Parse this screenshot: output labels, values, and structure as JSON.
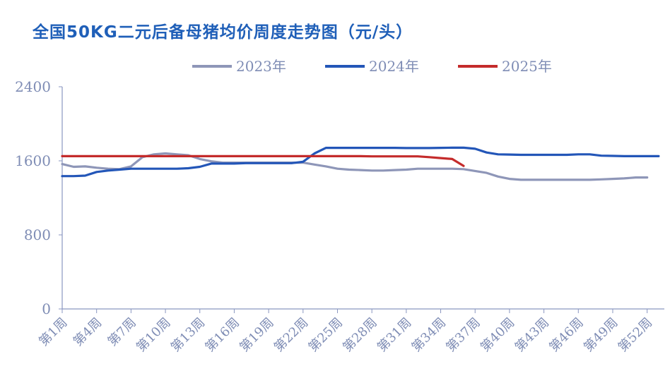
{
  "chart_data": {
    "type": "line",
    "title": "全国50KG二元后备母猪均价周度走势图（元/头）",
    "ylim": [
      0,
      2400
    ],
    "yticks": [
      0,
      800,
      1600,
      2400
    ],
    "xticks": [
      "第1周",
      "第4周",
      "第7周",
      "第10周",
      "第13周",
      "第16周",
      "第19周",
      "第22周",
      "第25周",
      "第28周",
      "第31周",
      "第34周",
      "第37周",
      "第40周",
      "第43周",
      "第46周",
      "第49周",
      "第52周"
    ],
    "legend_position": "top",
    "grid": false,
    "series": [
      {
        "name": "2023年",
        "color": "#8e96b8",
        "x": [
          1,
          2,
          3,
          4,
          5,
          6,
          7,
          8,
          9,
          10,
          11,
          12,
          13,
          14,
          15,
          16,
          17,
          18,
          19,
          20,
          21,
          22,
          23,
          24,
          25,
          26,
          27,
          28,
          29,
          30,
          31,
          32,
          33,
          34,
          35,
          36,
          37,
          38,
          39,
          40,
          41,
          42,
          43,
          44,
          45,
          46,
          47,
          48,
          49,
          50,
          51,
          52
        ],
        "values": [
          1565,
          1535,
          1540,
          1525,
          1515,
          1510,
          1540,
          1640,
          1670,
          1680,
          1670,
          1660,
          1620,
          1595,
          1580,
          1580,
          1580,
          1580,
          1580,
          1580,
          1580,
          1580,
          1560,
          1540,
          1515,
          1505,
          1500,
          1495,
          1495,
          1500,
          1505,
          1515,
          1515,
          1515,
          1515,
          1510,
          1490,
          1470,
          1430,
          1405,
          1395,
          1395,
          1395,
          1395,
          1395,
          1395,
          1395,
          1400,
          1405,
          1410,
          1420,
          1420
        ]
      },
      {
        "name": "2024年",
        "color": "#2356b8",
        "x": [
          1,
          2,
          3,
          4,
          5,
          6,
          7,
          8,
          9,
          10,
          11,
          12,
          13,
          14,
          15,
          16,
          17,
          18,
          19,
          20,
          21,
          22,
          23,
          24,
          25,
          26,
          27,
          28,
          29,
          30,
          31,
          32,
          33,
          34,
          35,
          36,
          37,
          38,
          39,
          40,
          41,
          42,
          43,
          44,
          45,
          46,
          47,
          48,
          49,
          50,
          51,
          52,
          53
        ],
        "values": [
          1435,
          1435,
          1440,
          1480,
          1495,
          1505,
          1515,
          1515,
          1515,
          1515,
          1515,
          1520,
          1535,
          1570,
          1570,
          1570,
          1575,
          1575,
          1575,
          1575,
          1575,
          1590,
          1680,
          1740,
          1740,
          1740,
          1740,
          1740,
          1740,
          1740,
          1738,
          1738,
          1738,
          1740,
          1742,
          1742,
          1730,
          1690,
          1670,
          1668,
          1665,
          1665,
          1665,
          1665,
          1665,
          1670,
          1670,
          1656,
          1653,
          1650,
          1650,
          1650,
          1650
        ]
      },
      {
        "name": "2025年",
        "color": "#c42b2b",
        "x": [
          1,
          2,
          3,
          4,
          5,
          6,
          7,
          8,
          9,
          10,
          11,
          12,
          13,
          14,
          15,
          16,
          17,
          18,
          19,
          20,
          21,
          22,
          23,
          24,
          25,
          26,
          27,
          28,
          29,
          30,
          31,
          32,
          33,
          34,
          35,
          36
        ],
        "values": [
          1650,
          1650,
          1650,
          1650,
          1650,
          1650,
          1650,
          1650,
          1650,
          1650,
          1650,
          1650,
          1650,
          1650,
          1650,
          1650,
          1650,
          1650,
          1650,
          1650,
          1650,
          1650,
          1650,
          1650,
          1650,
          1650,
          1650,
          1648,
          1648,
          1648,
          1648,
          1648,
          1640,
          1630,
          1620,
          1545
        ]
      }
    ]
  }
}
